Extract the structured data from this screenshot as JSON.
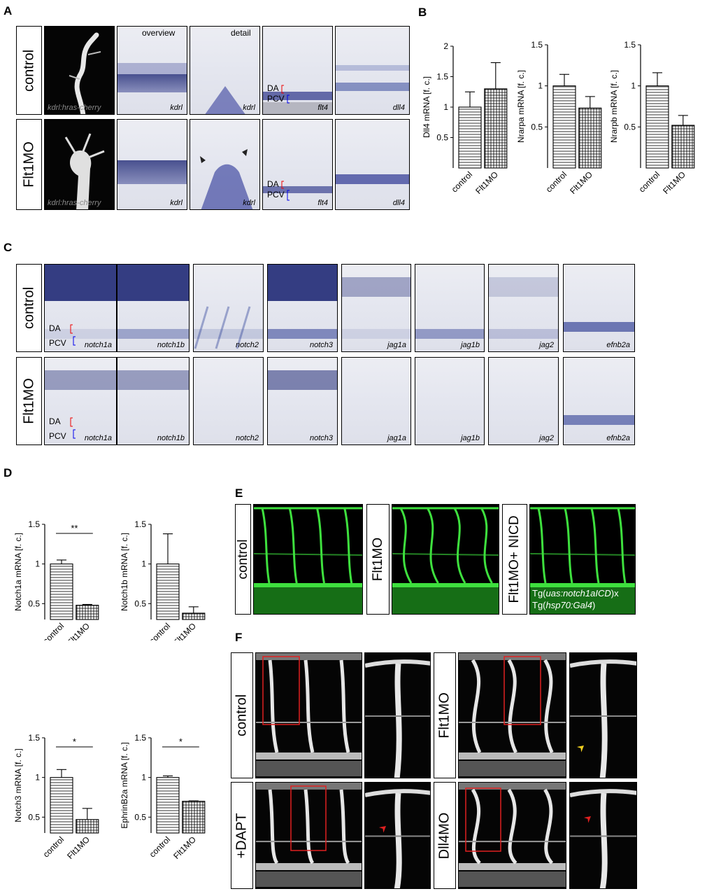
{
  "panels": {
    "A": "A",
    "B": "B",
    "C": "C",
    "D": "D",
    "E": "E",
    "F": "F"
  },
  "panelA": {
    "row_labels": [
      "control",
      "Flt1MO"
    ],
    "col_header_overview": "overview",
    "col_header_detail": "detail",
    "row1": [
      "kdrl:hras-cherry",
      "kdrl",
      "kdrl",
      "flt4",
      "dll4"
    ],
    "row2": [
      "kdrl:hras-cherry",
      "kdrl",
      "kdrl",
      "flt4",
      "dll4"
    ],
    "da": "DA",
    "pcv": "PCV"
  },
  "panelC": {
    "row_labels": [
      "control",
      "Flt1MO"
    ],
    "genes": [
      "notch1a",
      "notch1b",
      "notch2",
      "notch3",
      "jag1a",
      "jag1b",
      "jag2",
      "efnb2a"
    ],
    "da": "DA",
    "pcv": "PCV"
  },
  "panelE": {
    "labels": [
      "control",
      "Flt1MO",
      "Flt1MO+ NICD"
    ],
    "tg1_pre": "Tg(",
    "tg1_it": "uas:notch1aICD",
    "tg1_post": ")x",
    "tg2_pre": "Tg(",
    "tg2_it": "hsp70:Gal4",
    "tg2_post": ")"
  },
  "panelF": {
    "labels": [
      "control",
      "Flt1MO",
      "+DAPT",
      "Dll4MO"
    ]
  },
  "chart_data": [
    {
      "type": "bar",
      "panel": "B",
      "ylabel": "Dll4 mRNA [f. c.]",
      "categories": [
        "control",
        "Flt1MO"
      ],
      "values": [
        1.0,
        1.3
      ],
      "errors": [
        0.25,
        0.43
      ],
      "ylim": [
        0,
        2
      ],
      "yticks": [
        "0.5",
        "1",
        "1.5",
        "2"
      ],
      "significance": ""
    },
    {
      "type": "bar",
      "panel": "B",
      "ylabel": "Nrarpa mRNA [f. c.]",
      "categories": [
        "control",
        "Flt1MO"
      ],
      "values": [
        1.0,
        0.73
      ],
      "errors": [
        0.14,
        0.14
      ],
      "ylim": [
        0,
        1.5
      ],
      "yticks": [
        "0.5",
        "1",
        "1.5"
      ],
      "significance": ""
    },
    {
      "type": "bar",
      "panel": "B",
      "ylabel": "Nrarpb mRNA [f. c.]",
      "categories": [
        "control",
        "Flt1MO"
      ],
      "values": [
        1.0,
        0.52
      ],
      "errors": [
        0.16,
        0.12
      ],
      "ylim": [
        0,
        1.5
      ],
      "yticks": [
        "0.5",
        "1",
        "1.5"
      ],
      "significance": ""
    },
    {
      "type": "bar",
      "panel": "D",
      "ylabel": "Notch1a mRNA [f. c.]",
      "categories": [
        "control",
        "Flt1MO"
      ],
      "values": [
        1.0,
        0.48
      ],
      "errors": [
        0.05,
        0.01
      ],
      "ylim": [
        0.3,
        1.5
      ],
      "yticks": [
        "0.5",
        "1",
        "1.5"
      ],
      "significance": "**"
    },
    {
      "type": "bar",
      "panel": "D",
      "ylabel": "Notch1b mRNA [f. c.]",
      "categories": [
        "control",
        "Flt1MO"
      ],
      "values": [
        1.0,
        0.38
      ],
      "errors": [
        0.38,
        0.08
      ],
      "ylim": [
        0.3,
        1.5
      ],
      "yticks": [
        "0.5",
        "1",
        "1.5"
      ],
      "significance": ""
    },
    {
      "type": "bar",
      "panel": "D",
      "ylabel": "Notch3 mRNA [f. c.]",
      "categories": [
        "control",
        "Flt1MO"
      ],
      "values": [
        1.0,
        0.47
      ],
      "errors": [
        0.1,
        0.14
      ],
      "ylim": [
        0.3,
        1.5
      ],
      "yticks": [
        "0.5",
        "1",
        "1.5"
      ],
      "significance": "*"
    },
    {
      "type": "bar",
      "panel": "D",
      "ylabel": "EphrinB2a mRNA [f. c.]",
      "categories": [
        "control",
        "Flt1MO"
      ],
      "values": [
        1.0,
        0.7
      ],
      "errors": [
        0.02,
        0.005
      ],
      "ylim": [
        0.3,
        1.5
      ],
      "yticks": [
        "0.5",
        "1",
        "1.5"
      ],
      "significance": "*"
    }
  ]
}
